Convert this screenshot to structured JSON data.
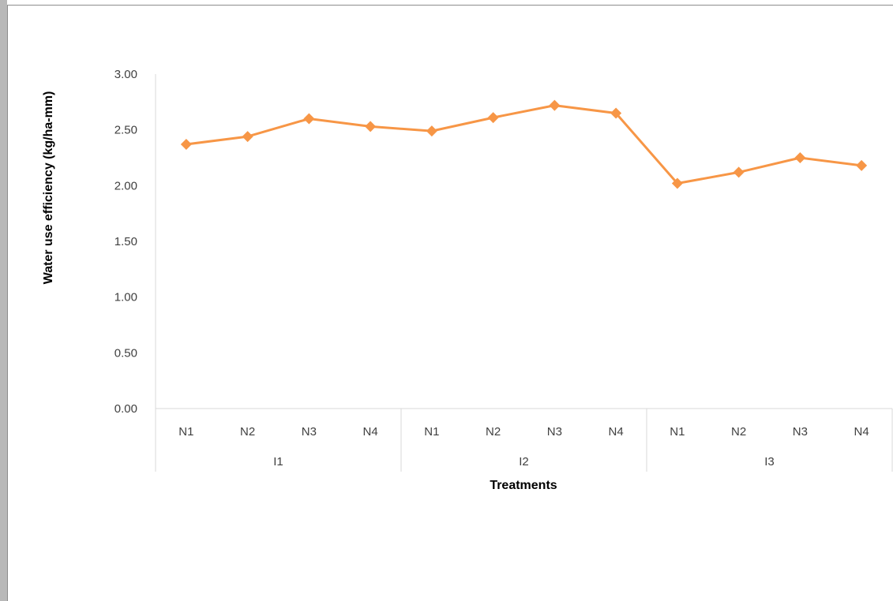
{
  "chart_data": {
    "type": "line",
    "title": "",
    "xlabel": "Treatments",
    "ylabel": "Water use efficiency (kg/ha-mm)",
    "ylim": [
      0,
      3
    ],
    "yticks": [
      "0.00",
      "0.50",
      "1.00",
      "1.50",
      "2.00",
      "2.50",
      "3.00"
    ],
    "groups": [
      {
        "label": "I1",
        "categories": [
          "N1",
          "N2",
          "N3",
          "N4"
        ]
      },
      {
        "label": "I2",
        "categories": [
          "N1",
          "N2",
          "N3",
          "N4"
        ]
      },
      {
        "label": "I3",
        "categories": [
          "N1",
          "N2",
          "N3",
          "N4"
        ]
      }
    ],
    "series": [
      {
        "values": [
          2.37,
          2.44,
          2.6,
          2.53,
          2.49,
          2.61,
          2.72,
          2.65,
          2.02,
          2.12,
          2.25,
          2.18
        ]
      }
    ],
    "grid": false,
    "legend": "none",
    "colors": {
      "line": "#f79646",
      "axis": "#d9d9d9",
      "text": "#404040"
    }
  }
}
